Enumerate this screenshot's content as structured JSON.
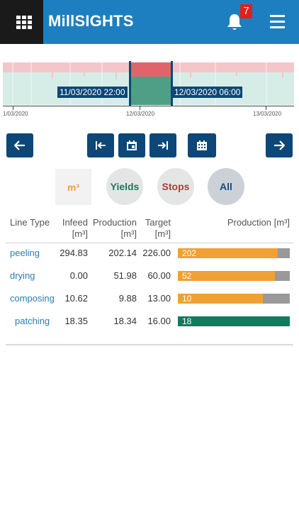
{
  "app": {
    "title": "MillSIGHTS",
    "notification_count": "7"
  },
  "timeline": {
    "range_start_label": "11/03/2020 22:00",
    "range_end_label": "12/03/2020 06:00",
    "ticks": [
      "1/03/2020",
      "12/03/2020",
      "13/03/2020"
    ]
  },
  "filters": {
    "m3": "m³",
    "yields": "Yields",
    "stops": "Stops",
    "all": "All"
  },
  "table": {
    "headers": {
      "line_type": "Line Type",
      "infeed": "Infeed",
      "infeed_unit": "[m³]",
      "production": "Production",
      "production_unit": "[m³]",
      "target": "Target",
      "target_unit": "[m³]",
      "production_bar": "Production [m³]"
    },
    "rows": [
      {
        "line": "peeling",
        "infeed": "294.83",
        "production": "202.14",
        "target": "226.00",
        "bar_label": "202",
        "fill": 0.894,
        "color": "#f0a035"
      },
      {
        "line": "drying",
        "infeed": "0.00",
        "production": "51.98",
        "target": "60.00",
        "bar_label": "52",
        "fill": 0.866,
        "color": "#f0a035"
      },
      {
        "line": "composing",
        "infeed": "10.62",
        "production": "9.88",
        "target": "13.00",
        "bar_label": "10",
        "fill": 0.76,
        "color": "#f0a035"
      },
      {
        "line": "patching",
        "infeed": "18.35",
        "production": "18.34",
        "target": "16.00",
        "bar_label": "18",
        "fill": 1.0,
        "color": "#147a5e"
      }
    ]
  },
  "colors": {
    "header": "#1d7fbf",
    "navy": "#0d4777",
    "orange": "#f0a035",
    "green": "#147a5e"
  }
}
